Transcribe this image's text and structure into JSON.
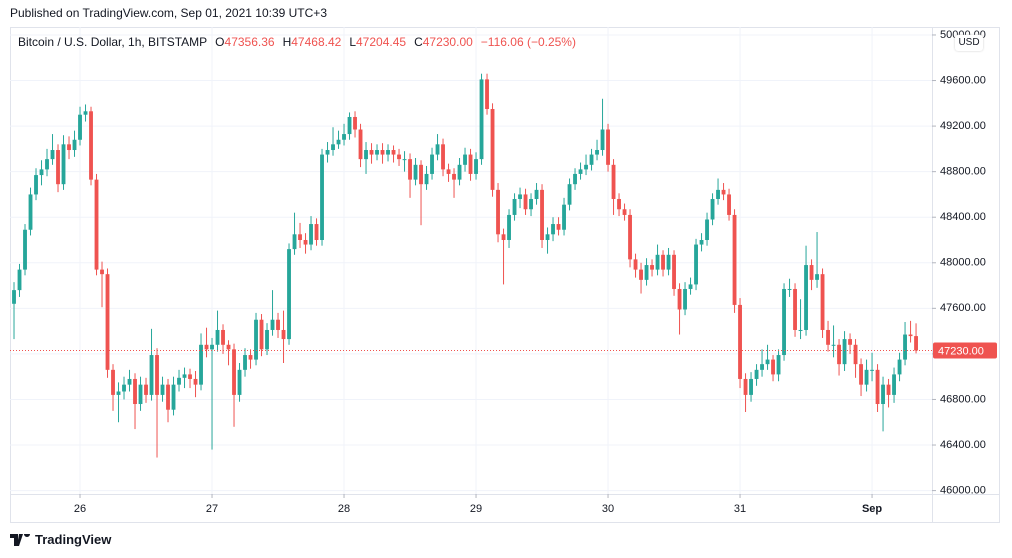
{
  "published": "Published on TradingView.com, Sep 01, 2021 10:39 UTC+3",
  "footer": "TradingView",
  "chart_data": {
    "type": "candlestick",
    "title": "Bitcoin / U.S. Dollar, 1h, BITSTAMP",
    "ohlc_labels": [
      {
        "label": "O",
        "value": "47356.36"
      },
      {
        "label": "H",
        "value": "47468.42"
      },
      {
        "label": "L",
        "value": "47204.45"
      },
      {
        "label": "C",
        "value": "47230.00"
      }
    ],
    "change": "−116.06 (−0.25%)",
    "currency": "USD",
    "up_color": "#26a69a",
    "down_color": "#ef5350",
    "grid": true,
    "price_line": {
      "value": 47230,
      "label": "47230.00"
    },
    "xlim": [
      -0.73,
      166.9
    ],
    "xticks": [
      {
        "value": 12,
        "label": "26"
      },
      {
        "value": 36,
        "label": "27"
      },
      {
        "value": 60,
        "label": "28"
      },
      {
        "value": 84,
        "label": "29"
      },
      {
        "value": 108,
        "label": "30"
      },
      {
        "value": 132,
        "label": "31"
      },
      {
        "value": 156,
        "label": "Sep"
      }
    ],
    "ylim": [
      45970,
      50070
    ],
    "yticks": [
      {
        "value": 46000,
        "label": "46000.00"
      },
      {
        "value": 46400,
        "label": "46400.00"
      },
      {
        "value": 46800,
        "label": "46800.00"
      },
      {
        "value": 47200,
        "label": "47200.00"
      },
      {
        "value": 47600,
        "label": "47600.00"
      },
      {
        "value": 48000,
        "label": "48000.00"
      },
      {
        "value": 48400,
        "label": "48400.00"
      },
      {
        "value": 48800,
        "label": "48800.00"
      },
      {
        "value": 49200,
        "label": "49200.00"
      },
      {
        "value": 49600,
        "label": "49600.00"
      },
      {
        "value": 50000,
        "label": "50000.00"
      }
    ],
    "open": [
      47640,
      47760,
      47940,
      48290,
      48600,
      48770,
      48820,
      48910,
      48990,
      48690,
      49040,
      48990,
      49080,
      49300,
      49330,
      48730,
      47940,
      47900,
      47060,
      46840,
      46870,
      46930,
      46980,
      46760,
      46930,
      46840,
      47190,
      46840,
      46930,
      46710,
      46930,
      46990,
      47020,
      46980,
      46930,
      47280,
      47240,
      47280,
      47410,
      47280,
      47240,
      46840,
      47060,
      47190,
      47150,
      47500,
      47240,
      47410,
      47500,
      47410,
      47330,
      48120,
      48250,
      48200,
      48160,
      48340,
      48200,
      48950,
      48990,
      49040,
      49080,
      49130,
      49280,
      49170,
      48910,
      48990,
      48950,
      48990,
      48950,
      48990,
      48950,
      48910,
      48910,
      48730,
      48860,
      48690,
      48780,
      48950,
      49040,
      48820,
      48780,
      48730,
      48860,
      48950,
      48780,
      48910,
      49610,
      49350,
      48640,
      48250,
      48200,
      48420,
      48560,
      48600,
      48470,
      48560,
      48640,
      48200,
      48250,
      48340,
      48290,
      48510,
      48690,
      48780,
      48820,
      48860,
      48950,
      48990,
      49170,
      48860,
      48560,
      48470,
      48420,
      48030,
      47940,
      47850,
      47980,
      47940,
      48070,
      47940,
      48070,
      47770,
      47590,
      47770,
      47810,
      48160,
      48200,
      48380,
      48560,
      48640,
      48600,
      48420,
      47630,
      46980,
      46840,
      46980,
      47060,
      47110,
      47150,
      47020,
      47190,
      47770,
      47770,
      47410,
      47410,
      47980,
      47850,
      47900,
      47410,
      47280,
      47280,
      47110,
      47330,
      47280,
      47110,
      46930,
      47060,
      47060,
      46760,
      46930,
      46840,
      47020,
      47150,
      47370,
      47356.36
    ],
    "high": [
      47830,
      47990,
      48340,
      48660,
      48830,
      48900,
      49000,
      49130,
      49040,
      49120,
      49110,
      49160,
      49370,
      49390,
      49370,
      48780,
      48010,
      47950,
      47110,
      46950,
      47000,
      47060,
      47030,
      47000,
      46990,
      47420,
      47250,
      47000,
      46980,
      47000,
      47060,
      47080,
      47070,
      47050,
      47380,
      47430,
      47340,
      47580,
      47460,
      47320,
      47290,
      47120,
      47250,
      47240,
      47560,
      47550,
      47470,
      47760,
      47560,
      47580,
      48170,
      48440,
      48350,
      48260,
      48410,
      48390,
      49000,
      49060,
      49190,
      49160,
      49220,
      49320,
      49330,
      49220,
      49060,
      49050,
      49040,
      49050,
      49040,
      49030,
      49000,
      48980,
      48960,
      48920,
      48900,
      48850,
      49010,
      49130,
      49090,
      48870,
      48830,
      48920,
      49010,
      49000,
      48970,
      49660,
      49660,
      49400,
      48700,
      48300,
      48470,
      48610,
      48660,
      48650,
      48610,
      48700,
      48690,
      48310,
      48400,
      48400,
      48570,
      48740,
      48830,
      48880,
      48950,
      49000,
      49080,
      49440,
      49220,
      48910,
      48610,
      48520,
      48470,
      48080,
      48000,
      48040,
      48030,
      48160,
      48110,
      48130,
      48110,
      47820,
      47830,
      47870,
      48210,
      48260,
      48440,
      48610,
      48740,
      48700,
      48650,
      48470,
      47690,
      47030,
      47040,
      47110,
      47240,
      47280,
      47190,
      47240,
      47820,
      47860,
      47820,
      47680,
      48150,
      48030,
      48270,
      47950,
      47490,
      47450,
      47330,
      47400,
      47380,
      47330,
      47160,
      47150,
      47210,
      47110,
      47000,
      46980,
      47080,
      47210,
      47480,
      47490,
      47468.42
    ],
    "low": [
      47330,
      47700,
      47890,
      48240,
      48550,
      48680,
      48760,
      48860,
      48620,
      48640,
      48910,
      48930,
      49030,
      49240,
      48680,
      47890,
      47610,
      46990,
      46700,
      46600,
      46800,
      46870,
      46540,
      46700,
      46770,
      46790,
      46290,
      46780,
      46600,
      46660,
      46870,
      46900,
      46900,
      46820,
      46880,
      47170,
      46360,
      47220,
      47200,
      47100,
      46560,
      46780,
      47000,
      47070,
      47100,
      47180,
      47190,
      47360,
      47340,
      47120,
      47280,
      48070,
      48130,
      48080,
      48110,
      48150,
      48150,
      48880,
      48940,
      49000,
      49030,
      49080,
      49100,
      48840,
      48780,
      48870,
      48900,
      48870,
      48890,
      48880,
      48850,
      48800,
      48570,
      48680,
      48330,
      48640,
      48730,
      48900,
      48760,
      48710,
      48570,
      48680,
      48800,
      48720,
      48730,
      48860,
      49300,
      48580,
      48180,
      47810,
      48130,
      48370,
      48480,
      48420,
      48410,
      48510,
      48130,
      48080,
      48190,
      48240,
      48240,
      48460,
      48640,
      48730,
      48770,
      48810,
      48900,
      48940,
      48800,
      48420,
      48410,
      48370,
      47960,
      47870,
      47730,
      47800,
      47880,
      47890,
      47880,
      47890,
      47710,
      47370,
      47540,
      47720,
      47760,
      48100,
      48150,
      48330,
      48510,
      48550,
      48370,
      47560,
      46900,
      46690,
      46780,
      46920,
      47000,
      47060,
      46960,
      46960,
      47140,
      47700,
      47350,
      47330,
      47360,
      47760,
      47780,
      47340,
      47220,
      47170,
      47010,
      47050,
      47200,
      46990,
      46830,
      46870,
      46960,
      46690,
      46520,
      46730,
      46770,
      46960,
      47100,
      47300,
      47204.45
    ],
    "close": [
      47760,
      47940,
      48290,
      48600,
      48770,
      48820,
      48910,
      48990,
      48690,
      49040,
      48990,
      49080,
      49300,
      49330,
      48730,
      47940,
      47900,
      47060,
      46840,
      46870,
      46930,
      46980,
      46760,
      46930,
      46840,
      47190,
      46840,
      46930,
      46710,
      46930,
      46990,
      47020,
      46980,
      46930,
      47280,
      47240,
      47280,
      47410,
      47280,
      47240,
      46840,
      47060,
      47190,
      47150,
      47500,
      47240,
      47410,
      47500,
      47410,
      47330,
      48120,
      48250,
      48200,
      48160,
      48340,
      48200,
      48950,
      48990,
      49040,
      49080,
      49130,
      49280,
      49170,
      48910,
      48990,
      48950,
      48990,
      48950,
      48990,
      48950,
      48910,
      48910,
      48730,
      48860,
      48690,
      48780,
      48950,
      49040,
      48820,
      48780,
      48730,
      48860,
      48950,
      48780,
      48910,
      49610,
      49350,
      48640,
      48250,
      48200,
      48420,
      48560,
      48600,
      48470,
      48560,
      48640,
      48200,
      48250,
      48340,
      48290,
      48510,
      48690,
      48780,
      48820,
      48860,
      48950,
      48990,
      49170,
      48860,
      48560,
      48470,
      48420,
      48030,
      47940,
      47850,
      47980,
      47940,
      48070,
      47940,
      48070,
      47770,
      47590,
      47770,
      47810,
      48160,
      48200,
      48380,
      48560,
      48640,
      48600,
      48420,
      47630,
      46980,
      46840,
      46980,
      47060,
      47110,
      47150,
      47020,
      47190,
      47770,
      47770,
      47410,
      47410,
      47980,
      47850,
      47900,
      47410,
      47280,
      47280,
      47110,
      47330,
      47280,
      47110,
      46930,
      47060,
      47060,
      46760,
      46930,
      46840,
      47020,
      47150,
      47370,
      47356.36,
      47230
    ]
  }
}
